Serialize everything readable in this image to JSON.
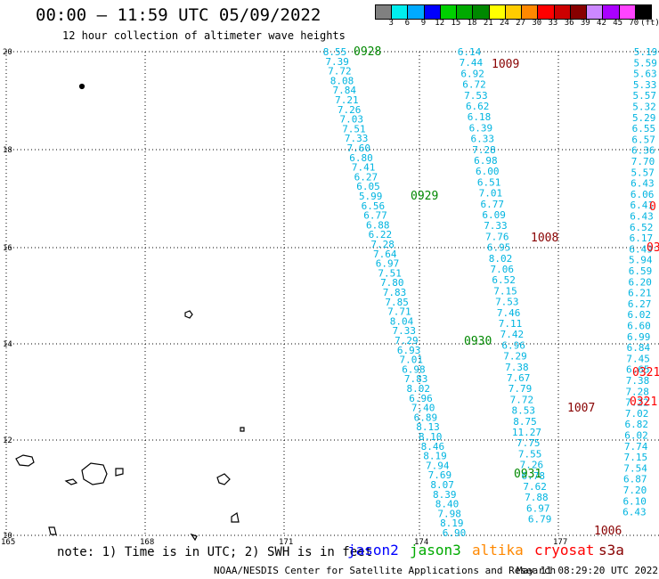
{
  "title": "00:00 — 11:59 UTC 05/09/2022",
  "subtitle": "12 hour collection of altimeter wave heights",
  "colorbar": {
    "colors": [
      "#808080",
      "#00eeee",
      "#00aaff",
      "#0000ff",
      "#00d000",
      "#00aa00",
      "#008800",
      "#ffff00",
      "#ffcc00",
      "#ff8800",
      "#ff0000",
      "#cc0000",
      "#880000",
      "#cc88ff",
      "#aa00ff",
      "#ff44ff",
      "#000000"
    ],
    "labels": [
      "3",
      "6",
      "9",
      "12",
      "15",
      "18",
      "21",
      "24",
      "27",
      "30",
      "33",
      "36",
      "39",
      "42",
      "45",
      "70",
      "(ft)"
    ]
  },
  "axes": {
    "x_ticks": [
      "165",
      "168",
      "171",
      "174",
      "177"
    ],
    "y_ticks": [
      "20",
      "18",
      "16",
      "14",
      "12",
      "10"
    ]
  },
  "tracks": [
    {
      "values": [
        "8.55",
        "7.39",
        "7.72",
        "8.08",
        "7.84",
        "7.21",
        "7.26",
        "7.03",
        "7.51",
        "7.33",
        "7.60",
        "6.80",
        "7.41",
        "6.27",
        "6.05",
        "5.99",
        "6.56",
        "6.77",
        "6.88",
        "6.22",
        "7.28",
        "7.64",
        "6.97",
        "7.51",
        "7.80",
        "7.83",
        "7.85",
        "7.71",
        "8.04",
        "7.33",
        "7.29",
        "6.93",
        "7.01",
        "6.98",
        "7.83",
        "8.02",
        "6.96",
        "7.40",
        "6.89",
        "8.13",
        "8.10",
        "8.46",
        "8.19",
        "7.94",
        "7.69",
        "8.07",
        "8.39",
        "8.40",
        "7.98",
        "8.19",
        "6.90"
      ]
    },
    {
      "values": [
        "6.14",
        "7.44",
        "6.92",
        "6.72",
        "7.53",
        "6.62",
        "6.18",
        "6.39",
        "6.33",
        "7.28",
        "6.98",
        "6.00",
        "6.51",
        "7.01",
        "6.77",
        "6.09",
        "7.33",
        "7.76",
        "6.95",
        "8.02",
        "7.06",
        "6.52",
        "7.15",
        "7.53",
        "7.46",
        "7.11",
        "7.42",
        "6.96",
        "7.29",
        "7.38",
        "7.67",
        "7.79",
        "7.72",
        "8.53",
        "8.75",
        "11.27",
        "7.75",
        "7.55",
        "7.26",
        "6.78",
        "7.62",
        "7.88",
        "6.97",
        "6.79"
      ]
    },
    {
      "values": [
        "5.19",
        "5.59",
        "5.63",
        "5.33",
        "5.57",
        "5.32",
        "5.29",
        "6.55",
        "6.57",
        "6.36",
        "7.70",
        "5.57",
        "6.43",
        "6.06",
        "6.41",
        "6.43",
        "6.52",
        "6.17",
        "6.49",
        "5.94",
        "6.59",
        "6.20",
        "6.21",
        "6.27",
        "6.02",
        "6.60",
        "6.99",
        "6.84",
        "7.45",
        "6.65",
        "7.38",
        "7.28",
        "7.22",
        "7.02",
        "6.82",
        "6.02",
        "7.74",
        "7.15",
        "7.54",
        "6.87",
        "7.20",
        "6.10",
        "6.43"
      ]
    }
  ],
  "time_labels": [
    {
      "text": "0928",
      "color": "#008800"
    },
    {
      "text": "0929",
      "color": "#008800"
    },
    {
      "text": "0930",
      "color": "#008800"
    },
    {
      "text": "0931",
      "color": "#008800"
    },
    {
      "text": "1009",
      "color": "#880000"
    },
    {
      "text": "1008",
      "color": "#880000"
    },
    {
      "text": "1007",
      "color": "#880000"
    },
    {
      "text": "1006",
      "color": "#880000"
    },
    {
      "text": "0321",
      "color": "#ff0000"
    },
    {
      "text": "0321",
      "color": "#ff0000"
    },
    {
      "text": "0",
      "color": "#ff0000"
    },
    {
      "text": "03",
      "color": "#ff0000"
    }
  ],
  "footer": {
    "note": "note: 1) Time is in UTC; 2) SWH is in feet",
    "credit": "NOAA/NESDIS Center for Satellite Applications and Research",
    "timestamp": "May 11 08:29:20 UTC 2022",
    "satellites": [
      {
        "name": "jason2",
        "color": "#0000ff"
      },
      {
        "name": "jason3",
        "color": "#00aa00"
      },
      {
        "name": "altika",
        "color": "#ff8800"
      },
      {
        "name": "cryosat",
        "color": "#ff0000"
      },
      {
        "name": "s3a",
        "color": "#880000"
      }
    ]
  }
}
